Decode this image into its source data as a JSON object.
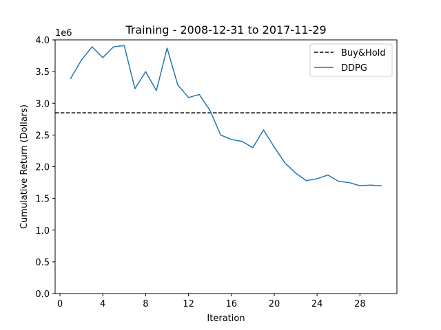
{
  "chart_data": {
    "type": "line",
    "title": "Training - 2008-12-31 to 2017-11-29",
    "xlabel": "Iteration",
    "ylabel": "Cumulative Return (Dollars)",
    "y_offset_label": "1e6",
    "xlim": [
      -0.45,
      31.45
    ],
    "ylim": [
      0,
      4000000
    ],
    "x_ticks": [
      0,
      4,
      8,
      12,
      16,
      20,
      24,
      28
    ],
    "y_ticks": [
      0,
      500000,
      1000000,
      1500000,
      2000000,
      2500000,
      3000000,
      3500000,
      4000000
    ],
    "x_tick_labels": [
      "0",
      "4",
      "8",
      "12",
      "16",
      "20",
      "24",
      "28"
    ],
    "y_tick_labels": [
      "0.0",
      "0.5",
      "1.0",
      "1.5",
      "2.0",
      "2.5",
      "3.0",
      "3.5",
      "4.0"
    ],
    "grid": false,
    "legend_position": "top-right",
    "series": [
      {
        "name": "Buy&Hold",
        "kind": "hline",
        "y": 2850000,
        "color": "#000000",
        "style": "dashed"
      },
      {
        "name": "DDPG",
        "kind": "line",
        "color": "#1f77b4",
        "x": [
          1,
          2,
          3,
          4,
          5,
          6,
          7,
          8,
          9,
          10,
          11,
          12,
          13,
          14,
          15,
          16,
          17,
          18,
          19,
          20,
          21,
          22,
          23,
          24,
          25,
          26,
          27,
          28,
          29,
          30
        ],
        "y": [
          3390000,
          3680000,
          3890000,
          3720000,
          3890000,
          3910000,
          3230000,
          3500000,
          3200000,
          3870000,
          3290000,
          3090000,
          3140000,
          2890000,
          2500000,
          2430000,
          2400000,
          2300000,
          2580000,
          2310000,
          2060000,
          1900000,
          1780000,
          1810000,
          1870000,
          1770000,
          1750000,
          1700000,
          1710000,
          1700000
        ]
      }
    ]
  }
}
